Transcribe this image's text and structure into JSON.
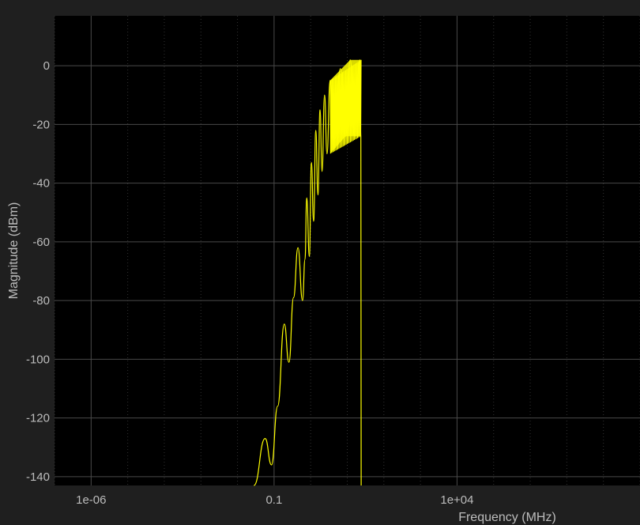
{
  "chart_data": {
    "type": "line",
    "title": "",
    "xlabel": "Frequency (MHz)",
    "ylabel": "Magnitude (dBm)",
    "x_scale": "log",
    "xlim": [
      1e-07,
      1000000000.0
    ],
    "ylim": [
      -143,
      17
    ],
    "x_ticks": [
      {
        "value": 1e-06,
        "label": "1e-06"
      },
      {
        "value": 0.1,
        "label": "0.1"
      },
      {
        "value": 10000,
        "label": "1e+04"
      }
    ],
    "y_ticks": [
      {
        "value": 0,
        "label": "0"
      },
      {
        "value": -20,
        "label": "-20"
      },
      {
        "value": -40,
        "label": "-40"
      },
      {
        "value": -60,
        "label": "-60"
      },
      {
        "value": -80,
        "label": "-80"
      },
      {
        "value": -100,
        "label": "-100"
      },
      {
        "value": -120,
        "label": "-120"
      },
      {
        "value": -140,
        "label": "-140"
      }
    ],
    "grid": true,
    "background": "#000000",
    "axes_color": "#1f1f1f",
    "grid_color": "#4a4a4a",
    "text_color": "#bdbdbd",
    "series": [
      {
        "color": "#ffff00",
        "main_lobe_edges": [
          0.0098,
          0.0281
        ],
        "lobes": [
          {
            "x": 0.0281,
            "y": -143
          },
          {
            "x": 0.057,
            "y": -127
          },
          {
            "x": 0.085,
            "y": -136
          },
          {
            "x": 0.125,
            "y": -116
          },
          {
            "x": 0.19,
            "y": -88
          },
          {
            "x": 0.255,
            "y": -101
          },
          {
            "x": 0.34,
            "y": -79
          },
          {
            "x": 0.45,
            "y": -62
          },
          {
            "x": 0.6,
            "y": -80
          },
          {
            "x": 0.7,
            "y": -66
          },
          {
            "x": 0.78,
            "y": -45
          },
          {
            "x": 0.92,
            "y": -65
          },
          {
            "x": 1.05,
            "y": -33
          },
          {
            "x": 1.2,
            "y": -53
          },
          {
            "x": 1.38,
            "y": -22
          },
          {
            "x": 1.58,
            "y": -44
          },
          {
            "x": 1.8,
            "y": -15
          },
          {
            "x": 2.05,
            "y": -36
          },
          {
            "x": 2.4,
            "y": -10
          },
          {
            "x": 2.8,
            "y": -30
          },
          {
            "x": 3.4,
            "y": -5
          },
          {
            "x": 4.5,
            "y": -25
          },
          {
            "x": 6.5,
            "y": -1
          },
          {
            "x": 9.0,
            "y": -24
          },
          {
            "x": 12.0,
            "y": 2
          },
          {
            "x": 16.0,
            "y": -24
          },
          {
            "x": 22.0,
            "y": 2
          },
          {
            "x": 23.5,
            "y": -24
          },
          {
            "x": 24.0,
            "y": -143
          }
        ],
        "cutoff": 24.0
      }
    ]
  }
}
